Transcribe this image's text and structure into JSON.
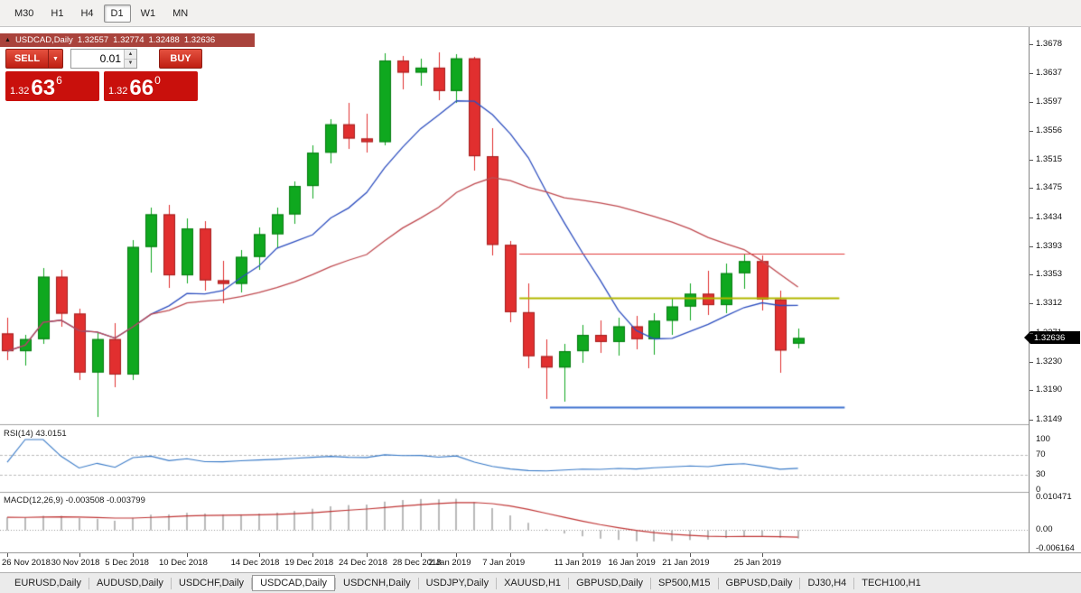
{
  "colors": {
    "title_bar": "#a9433c",
    "candle_up": "#0fa81f",
    "candle_up_border": "#077c12",
    "candle_down": "#e12f2f",
    "candle_down_border": "#a32020",
    "ma_fast": "#2e4fc0",
    "ma_slow": "#c04a50",
    "rsi_line": "#3a7bc8",
    "rsi_levels": "#bbbbbb",
    "macd_hist": "#b9b9b9",
    "macd_signal": "#c03535",
    "hline_red": "#e23b3b",
    "hline_olive": "#b3b800",
    "hline_blue": "#3f72d0",
    "divider": "#a3a3a3"
  },
  "toolbar": {
    "timeframes": [
      "M30",
      "H1",
      "H4",
      "D1",
      "W1",
      "MN"
    ],
    "active": "D1"
  },
  "chart_title": {
    "collapse_icon": "▲",
    "symbol": "USDCAD,Daily",
    "open": "1.32557",
    "high": "1.32774",
    "low": "1.32488",
    "close": "1.32636"
  },
  "trade_panel": {
    "sell_label": "SELL",
    "buy_label": "BUY",
    "volume": "0.01",
    "icons": {
      "dropdown": "▼",
      "spin_up": "▲",
      "spin_down": "▼"
    },
    "sell_price": {
      "prefix": "1.32",
      "big": "63",
      "sup": "6"
    },
    "buy_price": {
      "prefix": "1.32",
      "big": "66",
      "sup": "0"
    }
  },
  "price_axis": {
    "labels": [
      "1.3678",
      "1.3637",
      "1.3597",
      "1.3556",
      "1.3515",
      "1.3475",
      "1.3434",
      "1.3393",
      "1.3353",
      "1.3312",
      "1.3271",
      "1.3230",
      "1.3190",
      "1.3149"
    ],
    "current": "1.32636"
  },
  "indicators": {
    "rsi": {
      "label": "RSI(14) 43.0151",
      "levels": [
        "100",
        "70",
        "30",
        "0"
      ]
    },
    "macd": {
      "label": "MACD(12,26,9) -0.003508 -0.003799",
      "levels": [
        "0.010471",
        "0.00",
        "-0.006164"
      ]
    }
  },
  "tabs": {
    "items": [
      "EURUSD,Daily",
      "AUDUSD,Daily",
      "USDCHF,Daily",
      "USDCAD,Daily",
      "USDCNH,Daily",
      "USDJPY,Daily",
      "XAUUSD,H1",
      "GBPUSD,Daily",
      "SP500,M15",
      "GBPUSD,Daily",
      "DJ30,H4",
      "TECH100,H1"
    ],
    "active_index": 3
  },
  "chart_data": {
    "type": "candlestick",
    "symbol": "USDCAD",
    "timeframe": "Daily",
    "dates": [
      "26 Nov",
      "27 Nov",
      "28 Nov",
      "29 Nov",
      "30 Nov",
      "3 Dec",
      "4 Dec",
      "5 Dec",
      "6 Dec",
      "7 Dec",
      "10 Dec",
      "11 Dec",
      "12 Dec",
      "13 Dec",
      "14 Dec",
      "17 Dec",
      "18 Dec",
      "19 Dec",
      "20 Dec",
      "21 Dec",
      "24 Dec",
      "26 Dec",
      "27 Dec",
      "28 Dec",
      "31 Dec",
      "2 Jan",
      "3 Jan",
      "4 Jan",
      "7 Jan",
      "8 Jan",
      "9 Jan",
      "10 Jan",
      "11 Jan",
      "14 Jan",
      "15 Jan",
      "16 Jan",
      "17 Jan",
      "18 Jan",
      "21 Jan",
      "22 Jan",
      "23 Jan",
      "24 Jan",
      "25 Jan",
      "28 Jan",
      "29 Jan"
    ],
    "ohlc": [
      [
        1.327,
        1.3292,
        1.3232,
        1.3245
      ],
      [
        1.3245,
        1.3268,
        1.3225,
        1.3262
      ],
      [
        1.3262,
        1.3362,
        1.3255,
        1.335
      ],
      [
        1.335,
        1.336,
        1.328,
        1.3298
      ],
      [
        1.3298,
        1.3305,
        1.3205,
        1.3215
      ],
      [
        1.3215,
        1.3272,
        1.3152,
        1.3262
      ],
      [
        1.3262,
        1.3285,
        1.3195,
        1.3212
      ],
      [
        1.3212,
        1.3402,
        1.3205,
        1.3392
      ],
      [
        1.3392,
        1.3447,
        1.3355,
        1.3438
      ],
      [
        1.3438,
        1.3452,
        1.3335,
        1.3352
      ],
      [
        1.3352,
        1.3432,
        1.334,
        1.3418
      ],
      [
        1.3418,
        1.3428,
        1.333,
        1.3345
      ],
      [
        1.3345,
        1.3372,
        1.3312,
        1.334
      ],
      [
        1.334,
        1.3388,
        1.3328,
        1.3378
      ],
      [
        1.3378,
        1.342,
        1.336,
        1.341
      ],
      [
        1.341,
        1.3448,
        1.3392,
        1.3438
      ],
      [
        1.3438,
        1.3485,
        1.3425,
        1.3478
      ],
      [
        1.3478,
        1.3535,
        1.346,
        1.3525
      ],
      [
        1.3525,
        1.3572,
        1.351,
        1.3565
      ],
      [
        1.3565,
        1.3595,
        1.353,
        1.3545
      ],
      [
        1.3545,
        1.358,
        1.3525,
        1.354
      ],
      [
        1.354,
        1.3665,
        1.3535,
        1.3655
      ],
      [
        1.3655,
        1.3662,
        1.3615,
        1.3638
      ],
      [
        1.3638,
        1.3658,
        1.362,
        1.3645
      ],
      [
        1.3645,
        1.3667,
        1.36,
        1.3612
      ],
      [
        1.3612,
        1.3664,
        1.3595,
        1.3658
      ],
      [
        1.3658,
        1.366,
        1.35,
        1.352
      ],
      [
        1.352,
        1.356,
        1.338,
        1.3395
      ],
      [
        1.3395,
        1.34,
        1.3285,
        1.33
      ],
      [
        1.33,
        1.334,
        1.322,
        1.3238
      ],
      [
        1.3238,
        1.3262,
        1.3178,
        1.3222
      ],
      [
        1.3222,
        1.3255,
        1.3174,
        1.3245
      ],
      [
        1.3245,
        1.3282,
        1.3228,
        1.3268
      ],
      [
        1.3268,
        1.3288,
        1.3242,
        1.3258
      ],
      [
        1.3258,
        1.3292,
        1.3238,
        1.328
      ],
      [
        1.328,
        1.3295,
        1.3248,
        1.3262
      ],
      [
        1.3262,
        1.3298,
        1.324,
        1.3288
      ],
      [
        1.3288,
        1.332,
        1.3268,
        1.3308
      ],
      [
        1.3308,
        1.334,
        1.3288,
        1.3326
      ],
      [
        1.3326,
        1.3358,
        1.3296,
        1.331
      ],
      [
        1.331,
        1.3368,
        1.3298,
        1.3355
      ],
      [
        1.3355,
        1.3382,
        1.3332,
        1.3372
      ],
      [
        1.3372,
        1.338,
        1.3302,
        1.3318
      ],
      [
        1.3318,
        1.333,
        1.3214,
        1.3246
      ],
      [
        1.32557,
        1.32774,
        1.32488,
        1.32636
      ]
    ],
    "x_ticks": [
      {
        "index": 0,
        "label": "26 Nov 2018"
      },
      {
        "index": 4,
        "label": "30 Nov 2018"
      },
      {
        "index": 7,
        "label": "5 Dec 2018"
      },
      {
        "index": 10,
        "label": "10 Dec 2018"
      },
      {
        "index": 14,
        "label": "14 Dec 2018"
      },
      {
        "index": 17,
        "label": "19 Dec 2018"
      },
      {
        "index": 20,
        "label": "24 Dec 2018"
      },
      {
        "index": 23,
        "label": "28 Dec 2018"
      },
      {
        "index": 25,
        "label": "2 Jan 2019"
      },
      {
        "index": 28,
        "label": "7 Jan 2019"
      },
      {
        "index": 32,
        "label": "11 Jan 2019"
      },
      {
        "index": 35,
        "label": "16 Jan 2019"
      },
      {
        "index": 38,
        "label": "21 Jan 2019"
      },
      {
        "index": 42,
        "label": "25 Jan 2019"
      }
    ],
    "y_axis": {
      "min": 1.3142,
      "max": 1.3692
    },
    "ma_fast_period": 9,
    "ma_slow_period": 21,
    "hlines": [
      {
        "price": 1.3383,
        "i1": 28.5,
        "i2": 46.6,
        "color_key": "hline_red",
        "width": 1.2
      },
      {
        "price": 1.332,
        "i1": 28.5,
        "i2": 46.3,
        "color_key": "hline_olive",
        "width": 1.8
      },
      {
        "price": 1.3166,
        "i1": 30.2,
        "i2": 46.6,
        "color_key": "hline_blue",
        "width": 1.8
      }
    ],
    "rsi": {
      "period": 14,
      "current": 43.0151,
      "overbought": 70,
      "oversold": 30
    },
    "macd": {
      "fast": 12,
      "slow": 26,
      "signal": 9,
      "main": -0.003508,
      "signal_value": -0.003799,
      "axis_max": 0.010471,
      "axis_min": -0.006164
    },
    "last_price": 1.32636
  }
}
